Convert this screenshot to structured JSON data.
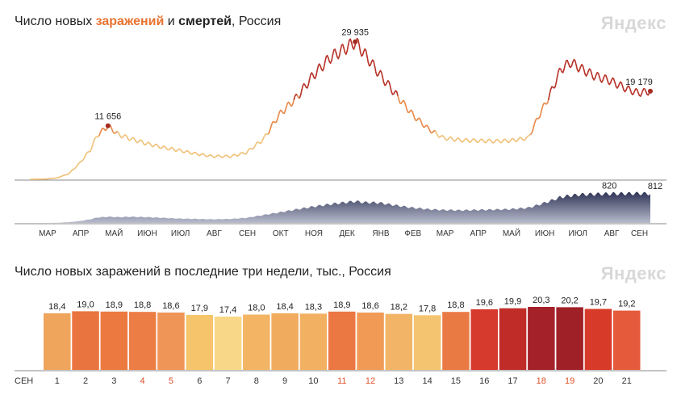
{
  "brand": {
    "logo": "Яндекс"
  },
  "top_chart": {
    "title_prefix": "Число новых ",
    "title_cases": "заражений",
    "title_mid": " и ",
    "title_deaths": "смертей",
    "title_suffix": ", Россия",
    "colors": {
      "cases_low": "#f0c27a",
      "cases_mid": "#e8894a",
      "cases_high": "#b8342a",
      "deaths": "#3e4468",
      "marker": "#a52a20"
    }
  },
  "bottom_chart": {
    "title": "Число новых заражений в последние три недели, тыс., Россия",
    "month_label": "СЕН"
  },
  "chart_data": [
    {
      "type": "line",
      "series_cases": {
        "x": [
          "2020-03-01",
          "2020-03-15",
          "2020-03-25",
          "2020-04-05",
          "2020-04-15",
          "2020-04-25",
          "2020-05-01",
          "2020-05-11",
          "2020-05-20",
          "2020-06-01",
          "2020-06-15",
          "2020-07-01",
          "2020-07-15",
          "2020-08-01",
          "2020-08-15",
          "2020-09-01",
          "2020-09-15",
          "2020-10-01",
          "2020-10-15",
          "2020-11-01",
          "2020-11-15",
          "2020-12-01",
          "2020-12-15",
          "2020-12-24",
          "2021-01-01",
          "2021-01-15",
          "2021-02-01",
          "2021-02-15",
          "2021-03-01",
          "2021-03-15",
          "2021-04-01",
          "2021-04-15",
          "2021-05-01",
          "2021-05-15",
          "2021-06-01",
          "2021-06-10",
          "2021-06-20",
          "2021-07-01",
          "2021-07-10",
          "2021-07-20",
          "2021-08-01",
          "2021-08-15",
          "2021-09-01",
          "2021-09-10",
          "2021-09-21"
        ],
        "values": [
          0,
          50,
          300,
          1200,
          3500,
          6500,
          9500,
          11656,
          9800,
          8800,
          7800,
          6900,
          6300,
          5500,
          5000,
          5000,
          5800,
          8800,
          14000,
          18000,
          22500,
          26500,
          28500,
          29935,
          27500,
          23000,
          18000,
          14000,
          11000,
          9000,
          8500,
          8400,
          8300,
          8400,
          9000,
          13500,
          18000,
          24000,
          25500,
          24000,
          22500,
          21500,
          19500,
          18800,
          19179
        ]
      },
      "series_deaths": {
        "values": [
          0,
          0,
          2,
          20,
          50,
          100,
          150,
          170,
          160,
          170,
          160,
          140,
          120,
          110,
          100,
          110,
          140,
          220,
          290,
          380,
          450,
          520,
          570,
          600,
          570,
          560,
          480,
          420,
          380,
          360,
          350,
          360,
          370,
          380,
          420,
          500,
          600,
          720,
          760,
          790,
          800,
          810,
          815,
          820,
          812
        ]
      },
      "x_ticks": [
        "МАР",
        "АПР",
        "МАЙ",
        "ИЮН",
        "ИЮЛ",
        "АВГ",
        "СЕН",
        "ОКТ",
        "НОЯ",
        "ДЕК",
        "ЯНВ",
        "ФЕВ",
        "МАР",
        "АПР",
        "МАЙ",
        "ИЮН",
        "ИЮЛ",
        "АВГ",
        "СЕН"
      ],
      "annotations": [
        {
          "label": "11 656",
          "index": 7
        },
        {
          "label": "29 935",
          "index": 23
        },
        {
          "label": "19 179",
          "index": 44
        }
      ],
      "death_annotations": [
        {
          "label": "820",
          "index": 43
        },
        {
          "label": "812",
          "index": 44
        }
      ],
      "ylim_cases": [
        0,
        32000
      ],
      "ylim_deaths": [
        0,
        900
      ]
    },
    {
      "type": "bar",
      "categories": [
        "1",
        "2",
        "3",
        "4",
        "5",
        "6",
        "7",
        "8",
        "9",
        "10",
        "11",
        "12",
        "13",
        "14",
        "15",
        "16",
        "17",
        "18",
        "19",
        "20",
        "21"
      ],
      "values": [
        18.4,
        19.0,
        18.9,
        18.8,
        18.6,
        17.9,
        17.4,
        18.0,
        18.4,
        18.3,
        18.9,
        18.6,
        18.2,
        17.8,
        18.8,
        19.6,
        19.9,
        20.3,
        20.2,
        19.7,
        19.2
      ],
      "labels": [
        "18,4",
        "19,0",
        "18,9",
        "18,8",
        "18,6",
        "17,9",
        "17,4",
        "18,0",
        "18,4",
        "18,3",
        "18,9",
        "18,6",
        "18,2",
        "17,8",
        "18,8",
        "19,6",
        "19,9",
        "20,3",
        "20,2",
        "19,7",
        "19,2"
      ],
      "colors": [
        "#efa55c",
        "#ea7440",
        "#ec7a40",
        "#ec7d44",
        "#ef9558",
        "#f6c46a",
        "#f8d888",
        "#f3b564",
        "#f1ab5e",
        "#f2b062",
        "#eb7743",
        "#f09a56",
        "#f2b466",
        "#f4c470",
        "#ea7a44",
        "#d63a2c",
        "#c02c28",
        "#a42129",
        "#a02028",
        "#d83a2a",
        "#e55a3a"
      ],
      "weekend_indices": [
        3,
        4,
        10,
        11,
        17,
        18
      ],
      "weekend_color": "#e0502a",
      "ylim": [
        0,
        21
      ]
    }
  ]
}
